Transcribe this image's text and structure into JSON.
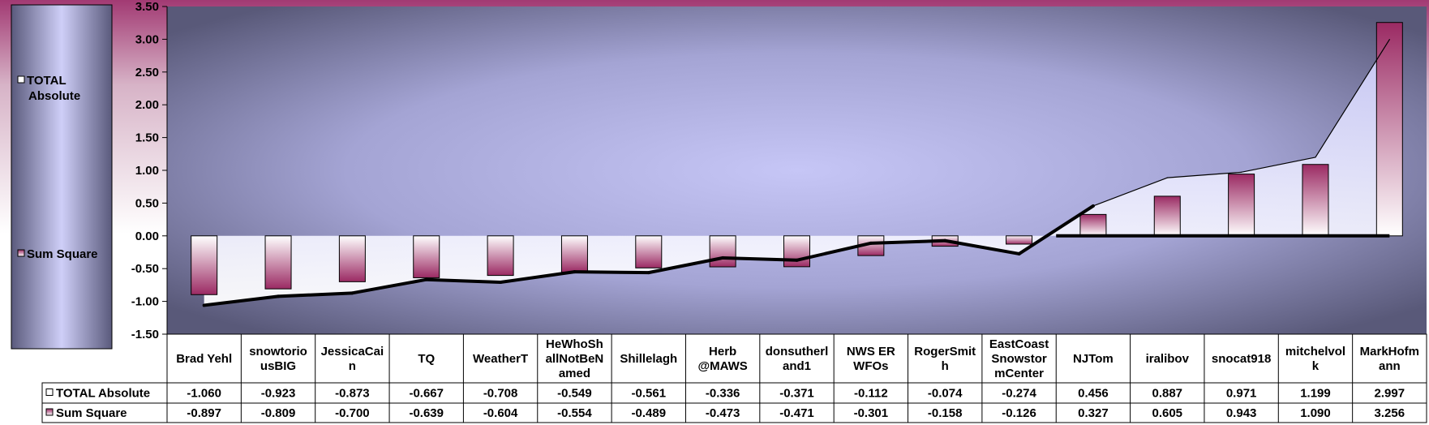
{
  "chart_data": {
    "type": "bar",
    "title": "",
    "xlabel": "",
    "ylabel": "",
    "ylim": [
      -1.5,
      3.5
    ],
    "yticks": [
      "3.50",
      "3.00",
      "2.50",
      "2.00",
      "1.50",
      "1.00",
      "0.50",
      "0.00",
      "-0.50",
      "-1.00",
      "-1.50"
    ],
    "ytick_values": [
      3.5,
      3.0,
      2.5,
      2.0,
      1.5,
      1.0,
      0.5,
      0.0,
      -0.5,
      -1.0,
      -1.5
    ],
    "categories": [
      [
        "Brad Yehl"
      ],
      [
        "snowtorio",
        "usBIG"
      ],
      [
        "JessicaCai",
        "n"
      ],
      [
        "TQ"
      ],
      [
        "WeatherT"
      ],
      [
        "HeWhoSh",
        "allNotBeN",
        "amed"
      ],
      [
        "Shillelagh"
      ],
      [
        "Herb",
        "@MAWS"
      ],
      [
        "donsutherl",
        "and1"
      ],
      [
        "NWS ER",
        "WFOs"
      ],
      [
        "RogerSmit",
        "h"
      ],
      [
        "EastCoast",
        "Snowstor",
        "mCenter"
      ],
      [
        "NJTom"
      ],
      [
        "iralibov"
      ],
      [
        "snocat918"
      ],
      [
        "mitchelvol",
        "k"
      ],
      [
        "MarkHofm",
        "ann"
      ]
    ],
    "series": [
      {
        "name": "TOTAL Absolute",
        "render": "area",
        "values": [
          -1.06,
          -0.923,
          -0.873,
          -0.667,
          -0.708,
          -0.549,
          -0.561,
          -0.336,
          -0.371,
          -0.112,
          -0.074,
          -0.274,
          0.456,
          0.887,
          0.971,
          1.199,
          2.997
        ],
        "labels": [
          "-1.060",
          "-0.923",
          "-0.873",
          "-0.667",
          "-0.708",
          "-0.549",
          "-0.561",
          "-0.336",
          "-0.371",
          "-0.112",
          "-0.074",
          "-0.274",
          "0.456",
          "0.887",
          "0.971",
          "1.199",
          "2.997"
        ],
        "color": "#ffffff"
      },
      {
        "name": "Sum Square",
        "render": "bar",
        "values": [
          -0.897,
          -0.809,
          -0.7,
          -0.639,
          -0.604,
          -0.554,
          -0.489,
          -0.473,
          -0.471,
          -0.301,
          -0.158,
          -0.126,
          0.327,
          0.605,
          0.943,
          1.09,
          3.256
        ],
        "labels": [
          "-0.897",
          "-0.809",
          "-0.700",
          "-0.639",
          "-0.604",
          "-0.554",
          "-0.489",
          "-0.473",
          "-0.471",
          "-0.301",
          "-0.158",
          "-0.126",
          "0.327",
          "0.605",
          "0.943",
          "1.090",
          "3.256"
        ],
        "color": "#9b2a63"
      }
    ],
    "legend": {
      "placement": "left",
      "items": [
        {
          "label": [
            "TOTAL",
            "Absolute"
          ]
        },
        {
          "label": [
            "Sum Square"
          ]
        }
      ]
    },
    "data_table": true,
    "grid": false
  }
}
